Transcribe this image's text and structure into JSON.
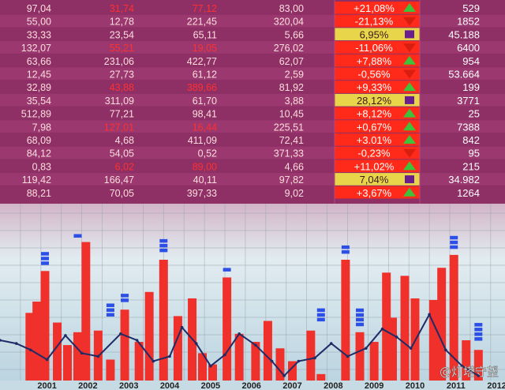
{
  "watermark": "@灯塔守望",
  "colors": {
    "board_bg": "#8e2f66",
    "board_row_alt": "#9a386f",
    "grid_bg_top": "#f3f6f8",
    "grid_bg_bottom": "#b8d3df",
    "bar_red": "#f0302a",
    "marker_blue": "#2c4fe8",
    "line_navy": "#1f2b66",
    "up_green": "#3ec13b",
    "down_red": "#d81e10",
    "flat_purple": "#6a1f8f",
    "cell_red": "#ff2a1a",
    "cell_yellow": "#e8d54a"
  },
  "board": {
    "rows": [
      {
        "c1": "97,04",
        "c2": "31,74",
        "c3": "77,12",
        "c4": "83,00",
        "change": "+21,08%",
        "trend": "up",
        "last": "529"
      },
      {
        "c1": "55,00",
        "c2": "12,78",
        "c3": "221,45",
        "c4": "320,04",
        "change": "-21,13%",
        "trend": "down",
        "last": "1852"
      },
      {
        "c1": "33,33",
        "c2": "23,54",
        "c3": "65,11",
        "c4": "5,66",
        "change": "6,95%",
        "trend": "flat",
        "last": "45.188"
      },
      {
        "c1": "132,07",
        "c2": "55,21",
        "c3": "19,05",
        "c4": "276,02",
        "change": "-11,06%",
        "trend": "down",
        "last": "6400"
      },
      {
        "c1": "63,66",
        "c2": "231,06",
        "c3": "422,77",
        "c4": "62,07",
        "change": "+7,88%",
        "trend": "up",
        "last": "954"
      },
      {
        "c1": "12,45",
        "c2": "27,73",
        "c3": "61,12",
        "c4": "2,59",
        "change": "-0,56%",
        "trend": "down",
        "last": "53.664"
      },
      {
        "c1": "32,89",
        "c2": "43,88",
        "c3": "389,66",
        "c4": "81,92",
        "change": "+9,33%",
        "trend": "up",
        "last": "199"
      },
      {
        "c1": "35,54",
        "c2": "311,09",
        "c3": "61,70",
        "c4": "3,88",
        "change": "28,12%",
        "trend": "flat",
        "last": "3771"
      },
      {
        "c1": "512,89",
        "c2": "77,21",
        "c3": "98,41",
        "c4": "10,45",
        "change": "+8,12%",
        "trend": "up",
        "last": "25"
      },
      {
        "c1": "7,98",
        "c2": "127,01",
        "c3": "16,44",
        "c4": "225,51",
        "change": "+0,67%",
        "trend": "up",
        "last": "7388"
      },
      {
        "c1": "68,09",
        "c2": "4,68",
        "c3": "411,09",
        "c4": "72,41",
        "change": "+3.01%",
        "trend": "up",
        "last": "842"
      },
      {
        "c1": "84,12",
        "c2": "54,05",
        "c3": "0,52",
        "c4": "371,33",
        "change": "-0,23%",
        "trend": "down",
        "last": "95"
      },
      {
        "c1": "0,83",
        "c2": "6,02",
        "c3": "89,00",
        "c4": "4,66",
        "change": "+11,02%",
        "trend": "up",
        "last": "215"
      },
      {
        "c1": "119,42",
        "c2": "166,47",
        "c3": "40,11",
        "c4": "97,82",
        "change": "7,04%",
        "trend": "flat",
        "last": "34.982"
      },
      {
        "c1": "88,21",
        "c2": "70,05",
        "c3": "397,33",
        "c4": "9,02",
        "change": "+3,67%",
        "trend": "up",
        "last": "1264"
      }
    ]
  },
  "chart_data": {
    "type": "bar",
    "categories": [
      "2001",
      "2002",
      "2003",
      "2004",
      "2005",
      "2006",
      "2007",
      "2008",
      "2009",
      "2010",
      "2011",
      "2012"
    ],
    "ylim": [
      0,
      100
    ],
    "grid": true,
    "bars": [
      {
        "x": 2000.73,
        "value": 42
      },
      {
        "x": 2000.9,
        "value": 49
      },
      {
        "x": 2001.1,
        "value": 68
      },
      {
        "x": 2001.4,
        "value": 36
      },
      {
        "x": 2001.65,
        "value": 22
      },
      {
        "x": 2001.9,
        "value": 30
      },
      {
        "x": 2002.1,
        "value": 86
      },
      {
        "x": 2002.4,
        "value": 31
      },
      {
        "x": 2002.7,
        "value": 13
      },
      {
        "x": 2003.05,
        "value": 44
      },
      {
        "x": 2003.4,
        "value": 24
      },
      {
        "x": 2003.65,
        "value": 55
      },
      {
        "x": 2004.0,
        "value": 75
      },
      {
        "x": 2004.35,
        "value": 40
      },
      {
        "x": 2004.7,
        "value": 51
      },
      {
        "x": 2004.95,
        "value": 17
      },
      {
        "x": 2005.2,
        "value": 10
      },
      {
        "x": 2005.55,
        "value": 64
      },
      {
        "x": 2005.85,
        "value": 29
      },
      {
        "x": 2006.25,
        "value": 24
      },
      {
        "x": 2006.55,
        "value": 37
      },
      {
        "x": 2006.85,
        "value": 20
      },
      {
        "x": 2007.15,
        "value": 12
      },
      {
        "x": 2007.6,
        "value": 31
      },
      {
        "x": 2007.85,
        "value": 4
      },
      {
        "x": 2008.45,
        "value": 75
      },
      {
        "x": 2008.8,
        "value": 30
      },
      {
        "x": 2009.15,
        "value": 24
      },
      {
        "x": 2009.45,
        "value": 67
      },
      {
        "x": 2009.6,
        "value": 39
      },
      {
        "x": 2009.9,
        "value": 65
      },
      {
        "x": 2010.15,
        "value": 51
      },
      {
        "x": 2010.6,
        "value": 50
      },
      {
        "x": 2010.8,
        "value": 70
      },
      {
        "x": 2011.1,
        "value": 78
      },
      {
        "x": 2011.4,
        "value": 25
      },
      {
        "x": 2011.7,
        "value": 19
      }
    ],
    "markers": [
      {
        "x": 2001.1,
        "value": 70,
        "count": 3
      },
      {
        "x": 2001.9,
        "value": 87,
        "count": 1
      },
      {
        "x": 2002.7,
        "value": 38,
        "count": 3
      },
      {
        "x": 2003.05,
        "value": 47,
        "count": 2
      },
      {
        "x": 2004.0,
        "value": 78,
        "count": 3
      },
      {
        "x": 2005.55,
        "value": 66,
        "count": 1
      },
      {
        "x": 2007.85,
        "value": 35,
        "count": 3
      },
      {
        "x": 2008.45,
        "value": 77,
        "count": 2
      },
      {
        "x": 2008.8,
        "value": 32,
        "count": 4
      },
      {
        "x": 2011.1,
        "value": 80,
        "count": 3
      },
      {
        "x": 2011.7,
        "value": 23,
        "count": 4
      }
    ],
    "line": [
      {
        "x": 2000.0,
        "y": 25
      },
      {
        "x": 2000.4,
        "y": 23
      },
      {
        "x": 2000.75,
        "y": 19
      },
      {
        "x": 2001.15,
        "y": 13
      },
      {
        "x": 2001.6,
        "y": 28
      },
      {
        "x": 2002.0,
        "y": 17
      },
      {
        "x": 2002.4,
        "y": 15
      },
      {
        "x": 2002.95,
        "y": 29
      },
      {
        "x": 2003.35,
        "y": 25
      },
      {
        "x": 2003.75,
        "y": 12
      },
      {
        "x": 2004.15,
        "y": 15
      },
      {
        "x": 2004.45,
        "y": 33
      },
      {
        "x": 2004.8,
        "y": 23
      },
      {
        "x": 2005.15,
        "y": 9
      },
      {
        "x": 2005.5,
        "y": 16
      },
      {
        "x": 2005.85,
        "y": 29
      },
      {
        "x": 2006.25,
        "y": 22
      },
      {
        "x": 2006.65,
        "y": 12
      },
      {
        "x": 2006.95,
        "y": 3
      },
      {
        "x": 2007.3,
        "y": 12
      },
      {
        "x": 2007.7,
        "y": 14
      },
      {
        "x": 2008.1,
        "y": 23
      },
      {
        "x": 2008.5,
        "y": 15
      },
      {
        "x": 2008.95,
        "y": 20
      },
      {
        "x": 2009.35,
        "y": 32
      },
      {
        "x": 2009.7,
        "y": 27
      },
      {
        "x": 2010.05,
        "y": 20
      },
      {
        "x": 2010.5,
        "y": 41
      },
      {
        "x": 2010.9,
        "y": 19
      },
      {
        "x": 2011.3,
        "y": 9
      },
      {
        "x": 2011.7,
        "y": 3
      }
    ]
  }
}
